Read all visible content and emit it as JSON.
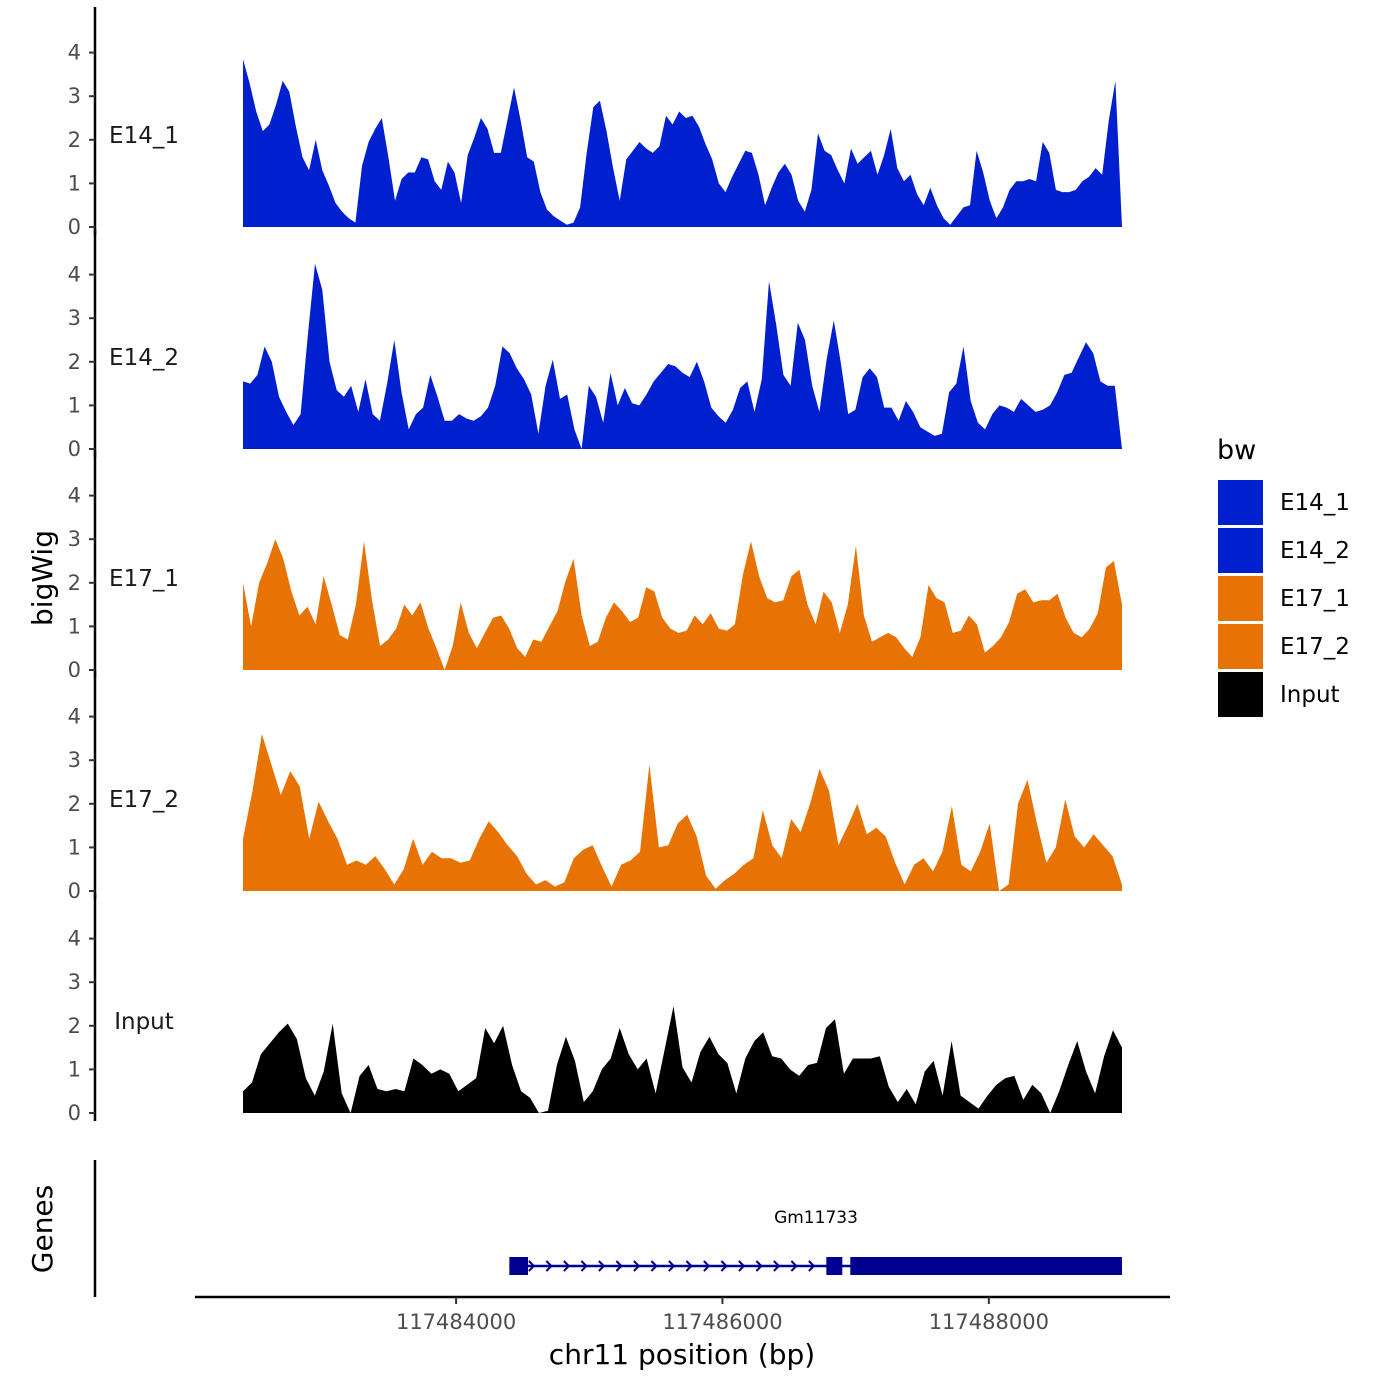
{
  "chart_data": {
    "type": "area",
    "y_axis_title": "bigWig",
    "x_axis_title": "chr11 position (bp)",
    "x_range": [
      117482400,
      117489000
    ],
    "x_ticks": [
      117484000,
      117486000,
      117488000
    ],
    "x_tick_labels": [
      "117484000",
      "117486000",
      "117488000"
    ],
    "ylim": [
      0,
      4.5
    ],
    "y_ticks": [
      0,
      1,
      2,
      3,
      4
    ],
    "y_tick_labels": [
      "0",
      "1",
      "2",
      "3",
      "4"
    ],
    "legend": {
      "title": "bw",
      "position": "right",
      "entries": [
        {
          "label": "E14_1",
          "color": "#0020d0"
        },
        {
          "label": "E14_2",
          "color": "#0020d0"
        },
        {
          "label": "E17_1",
          "color": "#e87305"
        },
        {
          "label": "E17_2",
          "color": "#e87305"
        },
        {
          "label": "Input",
          "color": "#000000"
        }
      ]
    },
    "series": [
      {
        "name": "E14_1",
        "color": "#0020d0",
        "values": [
          3.85,
          3.3,
          2.65,
          2.2,
          2.35,
          2.8,
          3.35,
          3.1,
          2.3,
          1.6,
          1.3,
          2.0,
          1.3,
          0.95,
          0.55,
          0.35,
          0.2,
          0.1,
          1.4,
          1.95,
          2.25,
          2.5,
          1.6,
          0.6,
          1.1,
          1.25,
          1.25,
          1.6,
          1.55,
          1.05,
          0.85,
          1.5,
          1.25,
          0.55,
          1.65,
          2.05,
          2.5,
          2.25,
          1.7,
          1.7,
          2.45,
          3.2,
          2.45,
          1.6,
          1.5,
          0.8,
          0.4,
          0.25,
          0.15,
          0.05,
          0.1,
          0.45,
          1.7,
          2.75,
          2.9,
          2.2,
          1.35,
          0.6,
          1.55,
          1.75,
          1.95,
          1.8,
          1.7,
          1.85,
          2.55,
          2.35,
          2.65,
          2.5,
          2.55,
          2.3,
          1.9,
          1.55,
          1.0,
          0.8,
          1.15,
          1.45,
          1.75,
          1.7,
          1.2,
          0.5,
          0.9,
          1.25,
          1.45,
          1.2,
          0.6,
          0.35,
          0.85,
          2.15,
          1.75,
          1.65,
          1.3,
          1.0,
          1.8,
          1.45,
          1.6,
          1.75,
          1.2,
          1.65,
          2.25,
          1.35,
          1.05,
          1.2,
          0.75,
          0.5,
          0.9,
          0.5,
          0.2,
          0.05,
          0.25,
          0.45,
          0.5,
          1.75,
          1.25,
          0.6,
          0.2,
          0.45,
          0.85,
          1.05,
          1.05,
          1.1,
          1.05,
          1.95,
          1.7,
          0.85,
          0.8,
          0.8,
          0.85,
          1.05,
          1.15,
          1.35,
          1.2,
          2.45,
          3.35,
          0.0
        ]
      },
      {
        "name": "E14_2",
        "color": "#0020d0",
        "values": [
          1.55,
          1.5,
          1.7,
          2.35,
          2.0,
          1.2,
          0.85,
          0.55,
          0.8,
          2.6,
          4.25,
          3.65,
          2.0,
          1.35,
          1.2,
          1.45,
          0.85,
          1.6,
          0.8,
          0.65,
          1.5,
          2.5,
          1.3,
          0.45,
          0.8,
          0.95,
          1.7,
          1.2,
          0.65,
          0.65,
          0.8,
          0.7,
          0.65,
          0.75,
          0.95,
          1.45,
          2.35,
          2.2,
          1.85,
          1.6,
          1.25,
          0.35,
          1.45,
          2.05,
          1.15,
          1.25,
          0.45,
          0.0,
          1.45,
          1.2,
          0.6,
          1.75,
          1.0,
          1.4,
          1.05,
          1.0,
          1.25,
          1.55,
          1.75,
          1.95,
          1.9,
          1.75,
          1.65,
          2.0,
          1.55,
          0.95,
          0.75,
          0.6,
          0.9,
          1.4,
          1.55,
          0.85,
          1.6,
          3.85,
          2.85,
          1.7,
          1.45,
          2.9,
          2.5,
          1.45,
          0.85,
          2.05,
          2.95,
          1.95,
          0.8,
          0.9,
          1.65,
          1.85,
          1.65,
          0.95,
          0.95,
          0.65,
          1.1,
          0.85,
          0.5,
          0.4,
          0.3,
          0.35,
          1.3,
          1.5,
          2.35,
          1.1,
          0.6,
          0.45,
          0.8,
          1.0,
          0.95,
          0.85,
          1.15,
          1.0,
          0.85,
          0.9,
          1.0,
          1.3,
          1.7,
          1.75,
          2.1,
          2.45,
          2.2,
          1.55,
          1.45,
          1.45,
          0.0
        ]
      },
      {
        "name": "E17_1",
        "color": "#e87305",
        "values": [
          2.0,
          1.0,
          2.0,
          2.45,
          3.0,
          2.55,
          1.8,
          1.25,
          1.45,
          1.05,
          2.15,
          1.5,
          0.8,
          0.7,
          1.5,
          2.95,
          1.6,
          0.55,
          0.7,
          0.95,
          1.5,
          1.25,
          1.55,
          0.95,
          0.5,
          0.0,
          0.55,
          1.55,
          0.85,
          0.5,
          0.85,
          1.2,
          1.25,
          0.95,
          0.5,
          0.3,
          0.7,
          0.65,
          1.0,
          1.35,
          2.05,
          2.55,
          1.25,
          0.55,
          0.65,
          1.2,
          1.55,
          1.35,
          1.1,
          1.2,
          1.9,
          1.8,
          1.2,
          0.95,
          0.85,
          0.9,
          1.25,
          1.05,
          1.3,
          0.95,
          0.9,
          1.05,
          2.2,
          2.95,
          2.15,
          1.65,
          1.55,
          1.6,
          2.15,
          2.3,
          1.5,
          1.05,
          1.8,
          1.55,
          0.85,
          1.5,
          2.85,
          1.25,
          0.65,
          0.75,
          0.85,
          0.75,
          0.5,
          0.3,
          0.75,
          1.95,
          1.65,
          1.55,
          0.85,
          0.9,
          1.25,
          1.05,
          0.4,
          0.55,
          0.75,
          1.1,
          1.75,
          1.85,
          1.55,
          1.6,
          1.6,
          1.75,
          1.2,
          0.85,
          0.75,
          0.95,
          1.3,
          2.35,
          2.5,
          1.5
        ]
      },
      {
        "name": "E17_2",
        "color": "#e87305",
        "values": [
          1.2,
          2.3,
          3.6,
          2.9,
          2.2,
          2.75,
          2.4,
          1.2,
          2.05,
          1.6,
          1.2,
          0.6,
          0.7,
          0.6,
          0.8,
          0.5,
          0.15,
          0.5,
          1.2,
          0.6,
          0.9,
          0.75,
          0.75,
          0.65,
          0.7,
          1.2,
          1.6,
          1.35,
          1.05,
          0.8,
          0.4,
          0.15,
          0.25,
          0.1,
          0.2,
          0.75,
          0.95,
          1.05,
          0.55,
          0.1,
          0.6,
          0.7,
          0.9,
          2.9,
          1.0,
          1.05,
          1.55,
          1.75,
          1.25,
          0.35,
          0.05,
          0.25,
          0.4,
          0.6,
          0.75,
          1.85,
          1.05,
          0.75,
          1.65,
          1.35,
          2.0,
          2.8,
          2.3,
          1.05,
          1.5,
          2.0,
          1.3,
          1.45,
          1.25,
          0.65,
          0.15,
          0.6,
          0.75,
          0.45,
          0.9,
          1.95,
          0.6,
          0.45,
          0.9,
          1.55,
          0.0,
          0.15,
          2.0,
          2.55,
          1.55,
          0.65,
          1.0,
          2.1,
          1.25,
          1.0,
          1.3,
          1.05,
          0.8,
          0.15
        ]
      },
      {
        "name": "Input",
        "color": "#000000",
        "values": [
          0.5,
          0.7,
          1.35,
          1.6,
          1.85,
          2.05,
          1.7,
          0.8,
          0.4,
          0.95,
          2.05,
          0.45,
          0.0,
          0.85,
          1.1,
          0.55,
          0.5,
          0.55,
          0.5,
          1.25,
          1.1,
          0.9,
          1.0,
          0.9,
          0.5,
          0.65,
          0.8,
          1.95,
          1.6,
          2.0,
          1.1,
          0.5,
          0.35,
          0.0,
          0.05,
          1.1,
          1.75,
          1.2,
          0.25,
          0.5,
          1.0,
          1.25,
          1.95,
          1.35,
          1.0,
          1.25,
          0.45,
          1.45,
          2.45,
          1.05,
          0.7,
          1.4,
          1.75,
          1.35,
          1.15,
          0.45,
          1.25,
          1.65,
          1.85,
          1.3,
          1.25,
          1.0,
          0.85,
          1.1,
          1.15,
          1.95,
          2.15,
          0.9,
          1.25,
          1.25,
          1.25,
          1.3,
          0.6,
          0.25,
          0.55,
          0.2,
          0.95,
          1.2,
          0.4,
          1.65,
          0.4,
          0.25,
          0.1,
          0.4,
          0.65,
          0.8,
          0.85,
          0.3,
          0.65,
          0.45,
          0.0,
          0.5,
          1.1,
          1.65,
          0.95,
          0.45,
          1.3,
          1.9,
          1.5
        ]
      }
    ],
    "genes_track": {
      "title": "Genes",
      "color": "#000090",
      "gene": {
        "name": "Gm11733",
        "start": 117484400,
        "end": 117489000,
        "exons": [
          [
            117484400,
            117484540
          ],
          [
            117486780,
            117486900
          ],
          [
            117486960,
            117489000
          ]
        ]
      }
    }
  }
}
